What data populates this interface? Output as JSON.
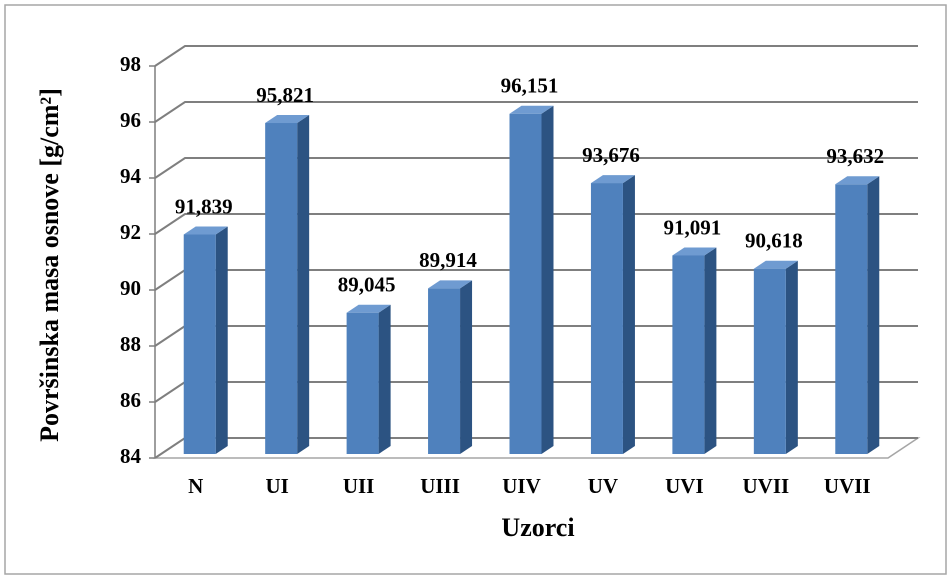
{
  "chart_data": {
    "type": "bar3d",
    "categories": [
      "N",
      "UI",
      "UII",
      "UIII",
      "UIV",
      "UV",
      "UVI",
      "UVII",
      "UVII"
    ],
    "values": [
      91.839,
      95.821,
      89.045,
      89.914,
      96.151,
      93.676,
      91.091,
      90.618,
      93.632
    ],
    "value_labels": [
      "91,839",
      "95,821",
      "89,045",
      "89,914",
      "96,151",
      "93,676",
      "91,091",
      "90,618",
      "93,632"
    ],
    "color": "#4f81bd",
    "xlabel": "Uzorci",
    "ylabel": "Površinska masa osnove [g/cm²]",
    "ylim": [
      84,
      98
    ],
    "yticks": [
      84,
      86,
      88,
      90,
      92,
      94,
      96,
      98
    ],
    "grid": true
  }
}
